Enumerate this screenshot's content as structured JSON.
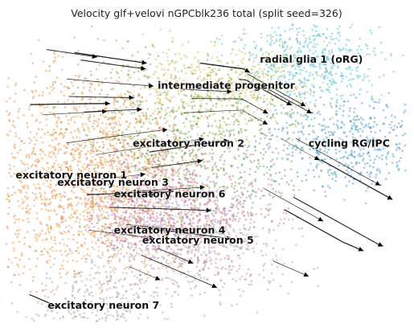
{
  "chart_data": {
    "type": "scatter",
    "title": "Velocity glf+velovi nGPCblk236 total (split seed=326)",
    "xlabel": "",
    "ylabel": "",
    "axes_visible": false,
    "grid": false,
    "legend": "on-data",
    "overlay": "velocity-streamlines",
    "colors": {
      "radial glia 1 (oRG)": "#3fbcd1",
      "cycling RG/IPC": "#2f8ec6",
      "intermediate progenitor": "#c9b438",
      "excitatory neuron 2": "#5e9e3c",
      "excitatory neuron 1": "#f07f1e",
      "excitatory neuron 3": "#f39a3d",
      "excitatory neuron 6": "#d35e82",
      "excitatory neuron 4": "#9b7bc1",
      "excitatory neuron 5": "#c48b7c",
      "excitatory neuron 7": "#a0a0a0",
      "streamline": "#000000"
    },
    "clusters": [
      {
        "name": "radial glia 1 (oRG)",
        "center": [
          0.55,
          0.78
        ]
      },
      {
        "name": "intermediate progenitor",
        "center": [
          0.1,
          0.6
        ]
      },
      {
        "name": "cycling RG/IPC",
        "center": [
          0.75,
          0.2
        ]
      },
      {
        "name": "excitatory neuron 2",
        "center": [
          -0.1,
          0.2
        ]
      },
      {
        "name": "excitatory neuron 1",
        "center": [
          -0.72,
          -0.02
        ]
      },
      {
        "name": "excitatory neuron 3",
        "center": [
          -0.5,
          -0.07
        ]
      },
      {
        "name": "excitatory neuron 6",
        "center": [
          -0.2,
          -0.15
        ]
      },
      {
        "name": "excitatory neuron 4",
        "center": [
          -0.2,
          -0.4
        ]
      },
      {
        "name": "excitatory neuron 5",
        "center": [
          -0.05,
          -0.47
        ]
      },
      {
        "name": "excitatory neuron 7",
        "center": [
          -0.55,
          -0.92
        ]
      }
    ]
  }
}
